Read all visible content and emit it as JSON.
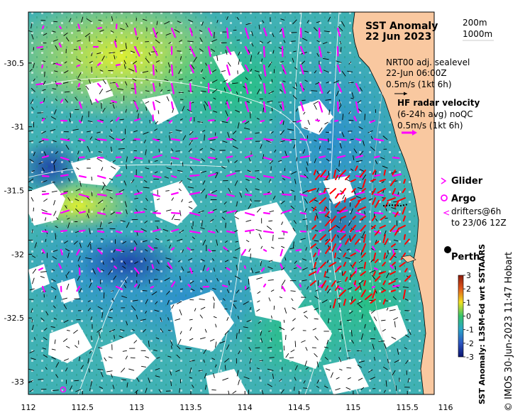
{
  "title": {
    "line1": "SST Anomaly",
    "line2": "22 Jun 2023"
  },
  "bathymetry_legend": {
    "contour1": "200m",
    "contour2": "1000m"
  },
  "altimetry": {
    "line1": "NRT00 adj. sealevel",
    "line2": "22-Jun 06:00Z",
    "line3": "0.5m/s (1kt 6h)"
  },
  "hf_radar": {
    "line1": "HF radar velocity",
    "line2": "(6-24h avg) noQC",
    "line3": "0.5m/s (1kt 6h)"
  },
  "glider_label": "Glider",
  "argo_label": "Argo",
  "drifters": {
    "line1": "drifters@6h",
    "line2": "to 23/06 12Z"
  },
  "city_label": "Perth",
  "colorbar": {
    "label": "SST Anomaly: L3SM-6d wrt SSTAARS",
    "ticks": [
      "3",
      "2",
      "1",
      "0",
      "-1",
      "-2",
      "-3"
    ],
    "range": [
      -3,
      3
    ]
  },
  "credit": "© IMOS 30-Jun-2023 11:47 Hobart",
  "map_data": {
    "type": "map",
    "x_ticks": [
      "112",
      "112.5",
      "113",
      "113.5",
      "114",
      "114.5",
      "115",
      "115.5",
      "116"
    ],
    "y_ticks": [
      "-30.5",
      "-31",
      "-31.5",
      "-32",
      "-32.5",
      "-33"
    ],
    "lon_range": [
      112,
      116
    ],
    "lat_range": [
      -33.1,
      -30.1
    ],
    "land_color": "#f9c8a0",
    "glider_color": "#ff00ff",
    "argo_color": "#ff00ff",
    "radar_vector_color": "#ff0000",
    "altimetry_vector_color": "#ff00ff",
    "city": {
      "lon": 115.86,
      "lat": -31.95
    }
  }
}
